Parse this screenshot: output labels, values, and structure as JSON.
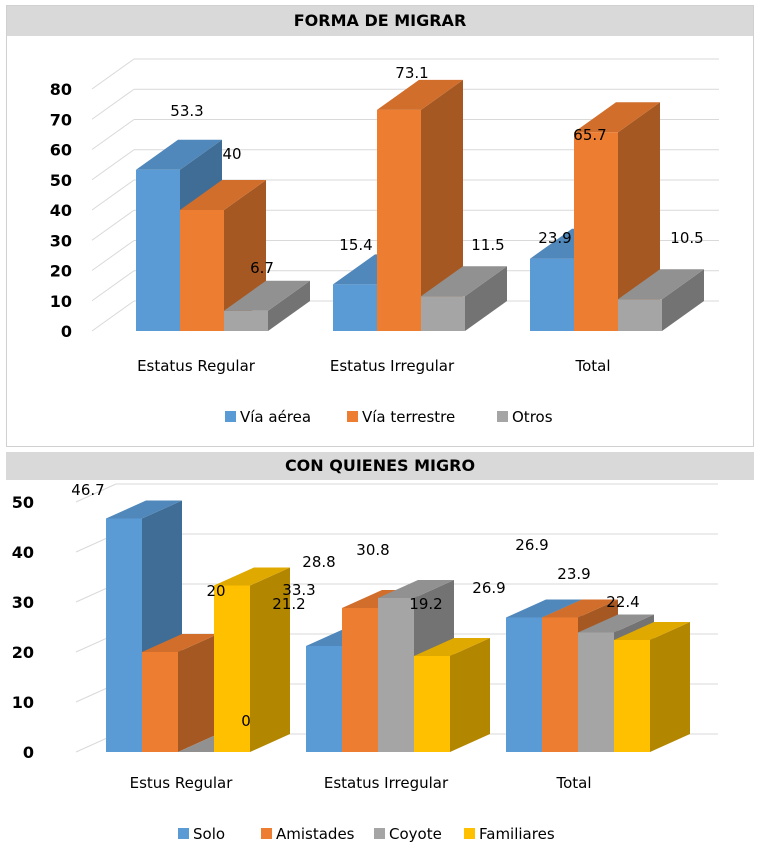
{
  "chart_data": [
    {
      "type": "bar",
      "title": "FORMA DE MIGRAR",
      "categories": [
        "Estatus Regular",
        "Estatus Irregular",
        "Total"
      ],
      "series": [
        {
          "name": "Vía aérea",
          "color": "#5b9bd5",
          "values": [
            53.3,
            15.4,
            23.9
          ]
        },
        {
          "name": "Vía terrestre",
          "color": "#ed7d31",
          "values": [
            40,
            73.1,
            65.7
          ]
        },
        {
          "name": "Otros",
          "color": "#a5a5a5",
          "values": [
            6.7,
            11.5,
            10.5
          ]
        }
      ],
      "yticks": [
        0,
        10,
        20,
        30,
        40,
        50,
        60,
        70,
        80
      ],
      "ylim": [
        0,
        80
      ],
      "grid": true,
      "legend": "bottom"
    },
    {
      "type": "bar",
      "title": "CON QUIENES MIGRO",
      "categories": [
        "Estus Regular",
        "Estatus Irregular",
        "Total"
      ],
      "series": [
        {
          "name": "Solo",
          "color": "#5b9bd5",
          "values": [
            46.7,
            21.2,
            26.9
          ]
        },
        {
          "name": "Amistades",
          "color": "#ed7d31",
          "values": [
            20,
            28.8,
            26.9
          ]
        },
        {
          "name": "Coyote",
          "color": "#a5a5a5",
          "values": [
            0,
            30.8,
            23.9
          ]
        },
        {
          "name": "Familiares",
          "color": "#ffc000",
          "values": [
            33.3,
            19.2,
            22.4
          ]
        }
      ],
      "yticks": [
        0,
        10,
        20,
        30,
        40,
        50
      ],
      "ylim": [
        0,
        50
      ],
      "grid": true,
      "legend": "bottom"
    }
  ]
}
